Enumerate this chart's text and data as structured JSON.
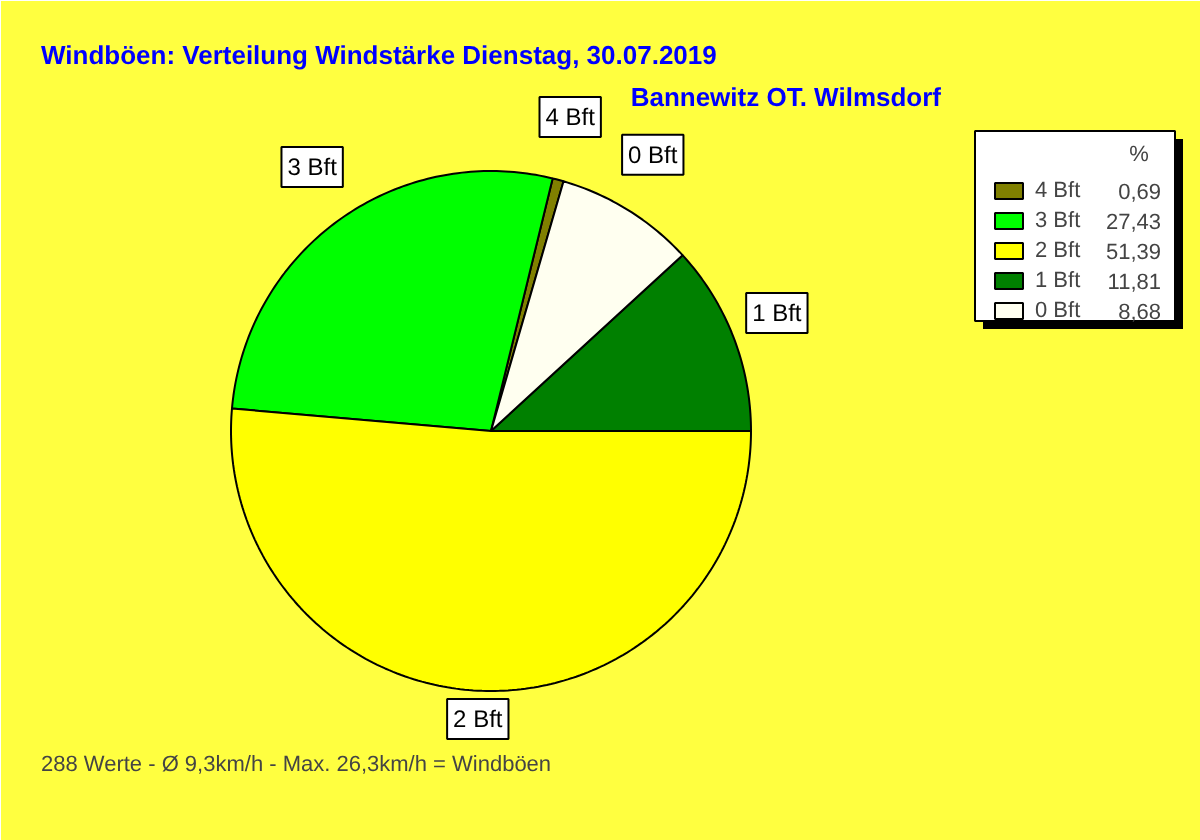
{
  "chart_data": {
    "type": "pie",
    "title": "Windböen: Verteilung Windstärke  Dienstag, 30.07.2019",
    "subtitle": "Bannewitz OT. Wilmsdorf",
    "categories": [
      "4 Bft",
      "3 Bft",
      "2 Bft",
      "1 Bft",
      "0 Bft"
    ],
    "values": [
      0.69,
      27.43,
      51.39,
      11.81,
      8.68
    ],
    "value_labels": [
      "0,69",
      "27,43",
      "51,39",
      "11,81",
      "8,68"
    ],
    "colors": [
      "#808000",
      "#00ff00",
      "#ffff00",
      "#008000",
      "#fffff0"
    ],
    "legend": "top right",
    "legend_title": "%",
    "annotations": [
      "288 Werte   -   Ø 9,3km/h  -  Max. 26,3km/h = Windböen"
    ]
  }
}
